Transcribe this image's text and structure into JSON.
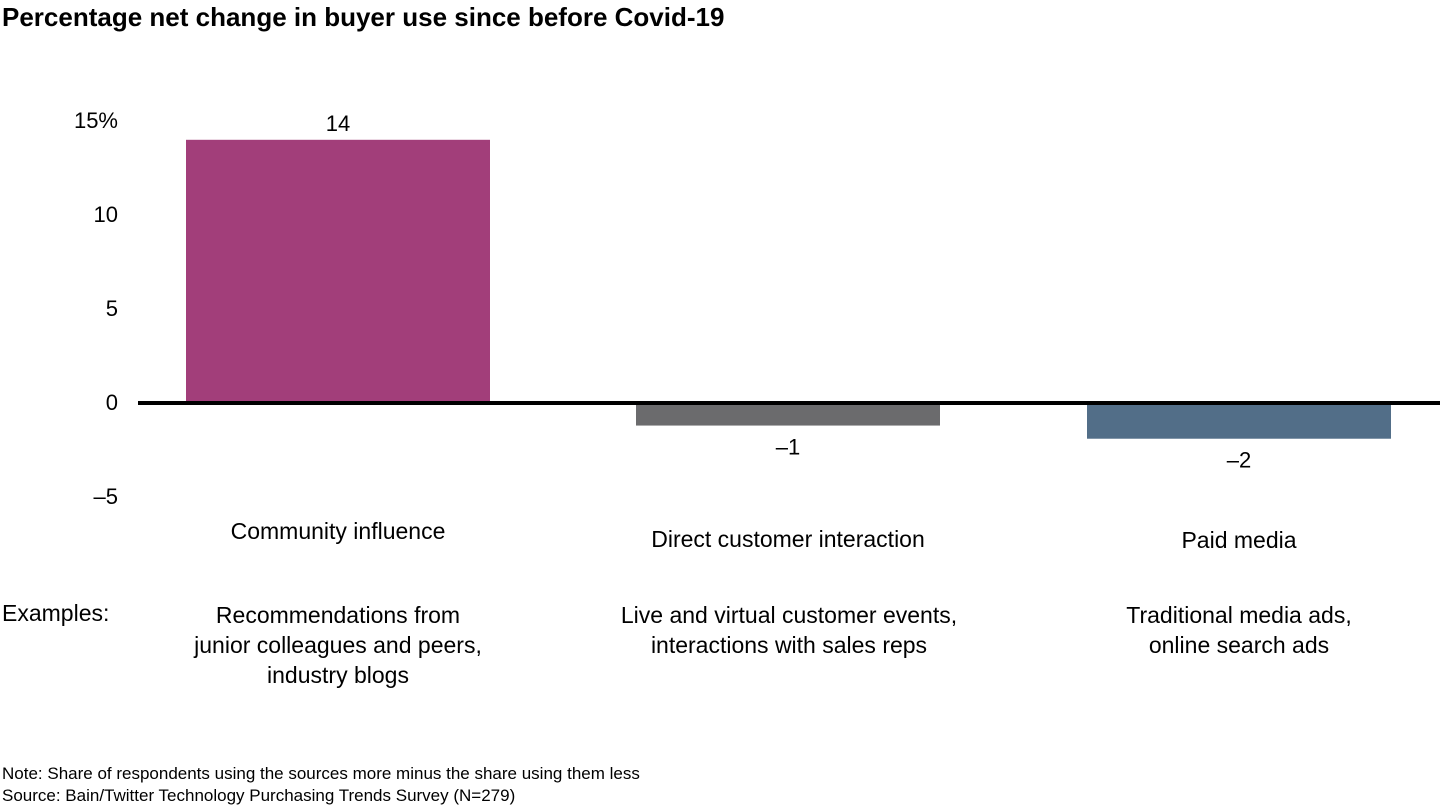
{
  "title": "Percentage net change in buyer use since before Covid-19",
  "chart_data": {
    "type": "bar",
    "categories": [
      "Community influence",
      "Direct customer interaction",
      "Paid media"
    ],
    "values": [
      14,
      -1.2,
      -1.9
    ],
    "data_labels": [
      "14",
      "–1",
      "–2"
    ],
    "colors": [
      "#A23E7A",
      "#6B6B6D",
      "#526E88"
    ],
    "ylim": [
      -5,
      15
    ],
    "yticks": [
      15,
      10,
      5,
      0,
      -5
    ],
    "ytick_labels": [
      "15%",
      "10",
      "5",
      "0",
      "–5"
    ],
    "xlabel": "",
    "ylabel": "",
    "grid": false
  },
  "examples": {
    "label": "Examples:",
    "items": [
      [
        "Recommendations from",
        "junior colleagues and peers,",
        "industry blogs"
      ],
      [
        "Live and virtual customer events,",
        "interactions with sales reps"
      ],
      [
        "Traditional media ads,",
        "online search ads"
      ]
    ]
  },
  "notes": {
    "note": "Note: Share of respondents using the sources more minus the share using them less",
    "source": "Source: Bain/Twitter Technology Purchasing Trends Survey (N=279)"
  }
}
